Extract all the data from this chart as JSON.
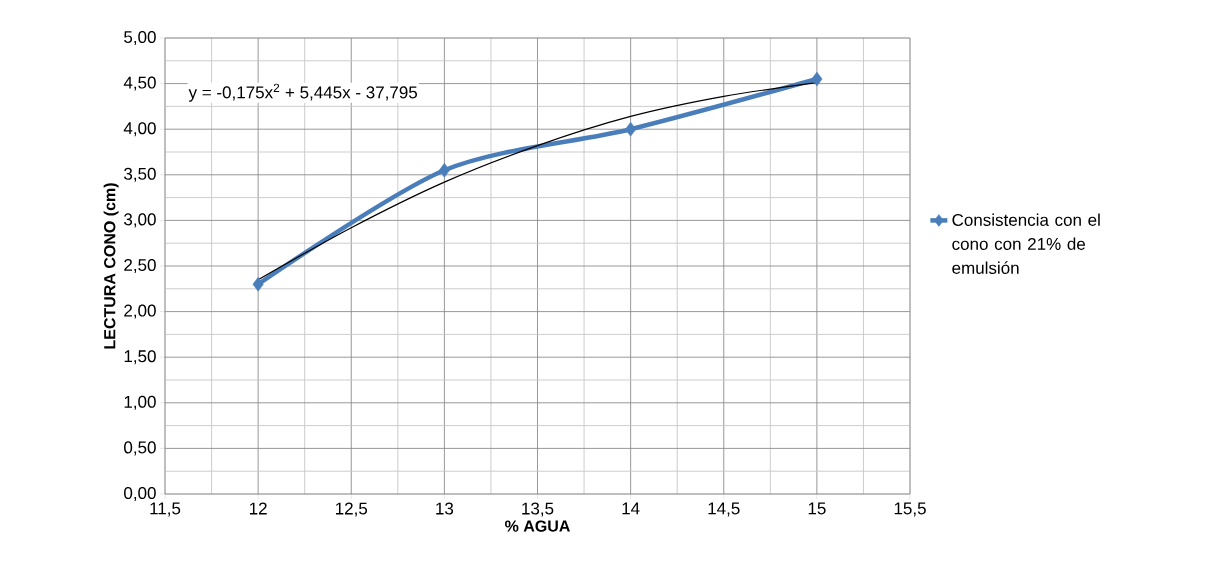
{
  "chart_data": {
    "type": "line",
    "xlabel": "% AGUA",
    "ylabel": "LECTURA CONO (cm)",
    "x": [
      12,
      13,
      14,
      15
    ],
    "series": [
      {
        "name": "Consistencia con el cono con 21% de emulsión",
        "color": "#4a7ebb",
        "values": [
          2.3,
          3.55,
          4.0,
          4.55
        ],
        "marker": "diamond"
      },
      {
        "type": "line",
        "color": "#000000",
        "x": [
          12,
          12.5,
          13,
          13.5,
          14,
          14.5,
          15
        ],
        "values": [
          2.35,
          2.92,
          3.42,
          3.82,
          4.14,
          4.36,
          4.51
        ],
        "marker": "none"
      }
    ],
    "annotations": [
      "y = -0,175x$^{2}$ + 5,445x - 37,795"
    ],
    "xlim": [
      11.5,
      15.5
    ],
    "xticks": [
      {
        "value": 11.5,
        "label": "11,5"
      },
      {
        "value": 12,
        "label": "12"
      },
      {
        "value": 12.5,
        "label": "12,5"
      },
      {
        "value": 13,
        "label": "13"
      },
      {
        "value": 13.5,
        "label": "13,5"
      },
      {
        "value": 14,
        "label": "14"
      },
      {
        "value": 14.5,
        "label": "14,5"
      },
      {
        "value": 15,
        "label": "15"
      },
      {
        "value": 15.5,
        "label": "15,5"
      }
    ],
    "ylim": [
      0,
      5
    ],
    "yticks": [
      {
        "value": 0,
        "label": "0,00"
      },
      {
        "value": 0.5,
        "label": "0,50"
      },
      {
        "value": 1,
        "label": "1,00"
      },
      {
        "value": 1.5,
        "label": "1,50"
      },
      {
        "value": 2,
        "label": "2,00"
      },
      {
        "value": 2.5,
        "label": "2,50"
      },
      {
        "value": 3,
        "label": "3,00"
      },
      {
        "value": 3.5,
        "label": "3,50"
      },
      {
        "value": 4,
        "label": "4,00"
      },
      {
        "value": 4.5,
        "label": "4,50"
      },
      {
        "value": 5,
        "label": "5,00"
      }
    ],
    "grid": true,
    "legend": "right"
  }
}
